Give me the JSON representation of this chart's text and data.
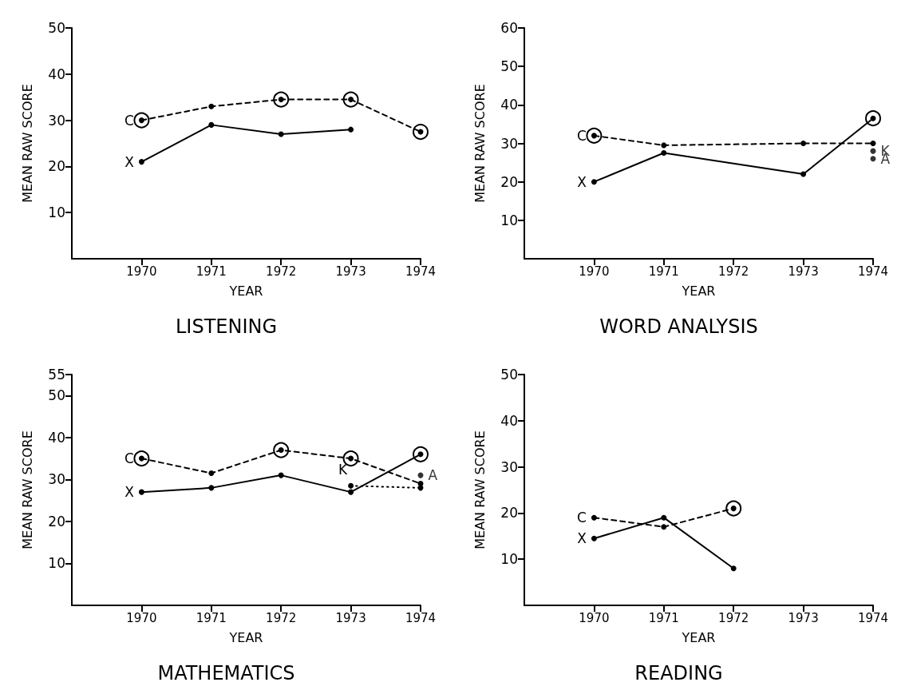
{
  "chart_data": [
    {
      "type": "line",
      "title": "LISTENING",
      "xlabel": "YEAR",
      "ylabel": "MEAN RAW SCORE",
      "xlim": [
        1969,
        1974
      ],
      "xticks": [
        1970,
        1971,
        1972,
        1973,
        1974
      ],
      "ylim": [
        0,
        50
      ],
      "yticks": [
        10,
        20,
        30,
        40,
        50
      ],
      "grid": false,
      "marker": "circle",
      "series": [
        {
          "name": "C",
          "color": "#000000",
          "line_style": "dashed",
          "x": [
            1970,
            1971,
            1972,
            1973,
            1974
          ],
          "values": [
            30,
            33,
            34.5,
            34.5,
            27.5
          ]
        },
        {
          "name": "X",
          "color": "#000000",
          "line_style": "solid",
          "x": [
            1970,
            1971,
            1972,
            1973
          ],
          "values": [
            21,
            29,
            27,
            28
          ]
        },
        {
          "type": "scatter",
          "color": "#000000",
          "marker": "circle",
          "x": [
            1970,
            1972,
            1973,
            1974
          ],
          "values": [
            30,
            34.5,
            34.5,
            27.5
          ]
        }
      ]
    },
    {
      "type": "line",
      "title": "WORD ANALYSIS",
      "xlabel": "YEAR",
      "ylabel": "MEAN RAW SCORE",
      "xlim": [
        1969,
        1974
      ],
      "xticks": [
        1970,
        1971,
        1972,
        1973,
        1974
      ],
      "ylim": [
        0,
        60
      ],
      "yticks": [
        10,
        20,
        30,
        40,
        50,
        60
      ],
      "grid": false,
      "marker": "circle",
      "series": [
        {
          "name": "C",
          "color": "#000000",
          "line_style": "dashed",
          "x": [
            1970,
            1971,
            1973,
            1974
          ],
          "values": [
            32,
            29.5,
            30,
            30
          ]
        },
        {
          "name": "X",
          "color": "#000000",
          "line_style": "solid",
          "x": [
            1970,
            1971,
            1973,
            1974
          ],
          "values": [
            20,
            27.5,
            22,
            36.5
          ]
        },
        {
          "name": "K",
          "type": "scatter",
          "color": "#000000",
          "x": [
            1974
          ],
          "values": [
            28
          ]
        },
        {
          "name": "A",
          "type": "scatter",
          "color": "#000000",
          "x": [
            1974
          ],
          "values": [
            26
          ]
        },
        {
          "type": "scatter",
          "color": "#000000",
          "marker": "circle",
          "x": [
            1970,
            1974
          ],
          "values": [
            32,
            36.5
          ]
        }
      ]
    },
    {
      "type": "line",
      "title": "MATHEMATICS",
      "xlabel": "YEAR",
      "ylabel": "MEAN RAW SCORE",
      "xlim": [
        1969,
        1974
      ],
      "xticks": [
        1970,
        1971,
        1972,
        1973,
        1974
      ],
      "ylim": [
        0,
        55
      ],
      "yticks": [
        10,
        20,
        30,
        40,
        50,
        55
      ],
      "grid": false,
      "marker": "circle",
      "series": [
        {
          "name": "C",
          "color": "#000000",
          "line_style": "dashed",
          "x": [
            1970,
            1971,
            1972,
            1973,
            1974
          ],
          "values": [
            35,
            31.5,
            37,
            35,
            29
          ]
        },
        {
          "name": "X",
          "color": "#000000",
          "line_style": "solid",
          "x": [
            1970,
            1971,
            1972,
            1973,
            1974
          ],
          "values": [
            27,
            28,
            31,
            27,
            36
          ]
        },
        {
          "name": "K",
          "color": "#000000",
          "line_style": "dotted",
          "x": [
            1973,
            1974
          ],
          "values": [
            28.5,
            28
          ]
        },
        {
          "name": "A",
          "type": "scatter",
          "color": "#000000",
          "x": [
            1974
          ],
          "values": [
            31
          ]
        },
        {
          "type": "scatter",
          "color": "#000000",
          "marker": "circle",
          "x": [
            1970,
            1972,
            1973,
            1974
          ],
          "values": [
            35,
            37,
            35,
            36
          ]
        }
      ]
    },
    {
      "type": "line",
      "title": "READING",
      "xlabel": "YEAR",
      "ylabel": "MEAN RAW SCORE",
      "xlim": [
        1969,
        1974
      ],
      "xticks": [
        1970,
        1971,
        1972,
        1973,
        1974
      ],
      "ylim": [
        0,
        50
      ],
      "yticks": [
        10,
        20,
        30,
        40,
        50
      ],
      "grid": false,
      "marker": "circle",
      "series": [
        {
          "name": "C",
          "color": "#000000",
          "line_style": "dashed",
          "x": [
            1970,
            1971,
            1972
          ],
          "values": [
            19,
            17,
            21
          ]
        },
        {
          "name": "X",
          "color": "#000000",
          "line_style": "solid",
          "x": [
            1970,
            1971,
            1972
          ],
          "values": [
            14.5,
            19,
            8
          ]
        },
        {
          "type": "scatter",
          "color": "#000000",
          "marker": "circle",
          "x": [
            1972
          ],
          "values": [
            21
          ]
        }
      ]
    }
  ]
}
